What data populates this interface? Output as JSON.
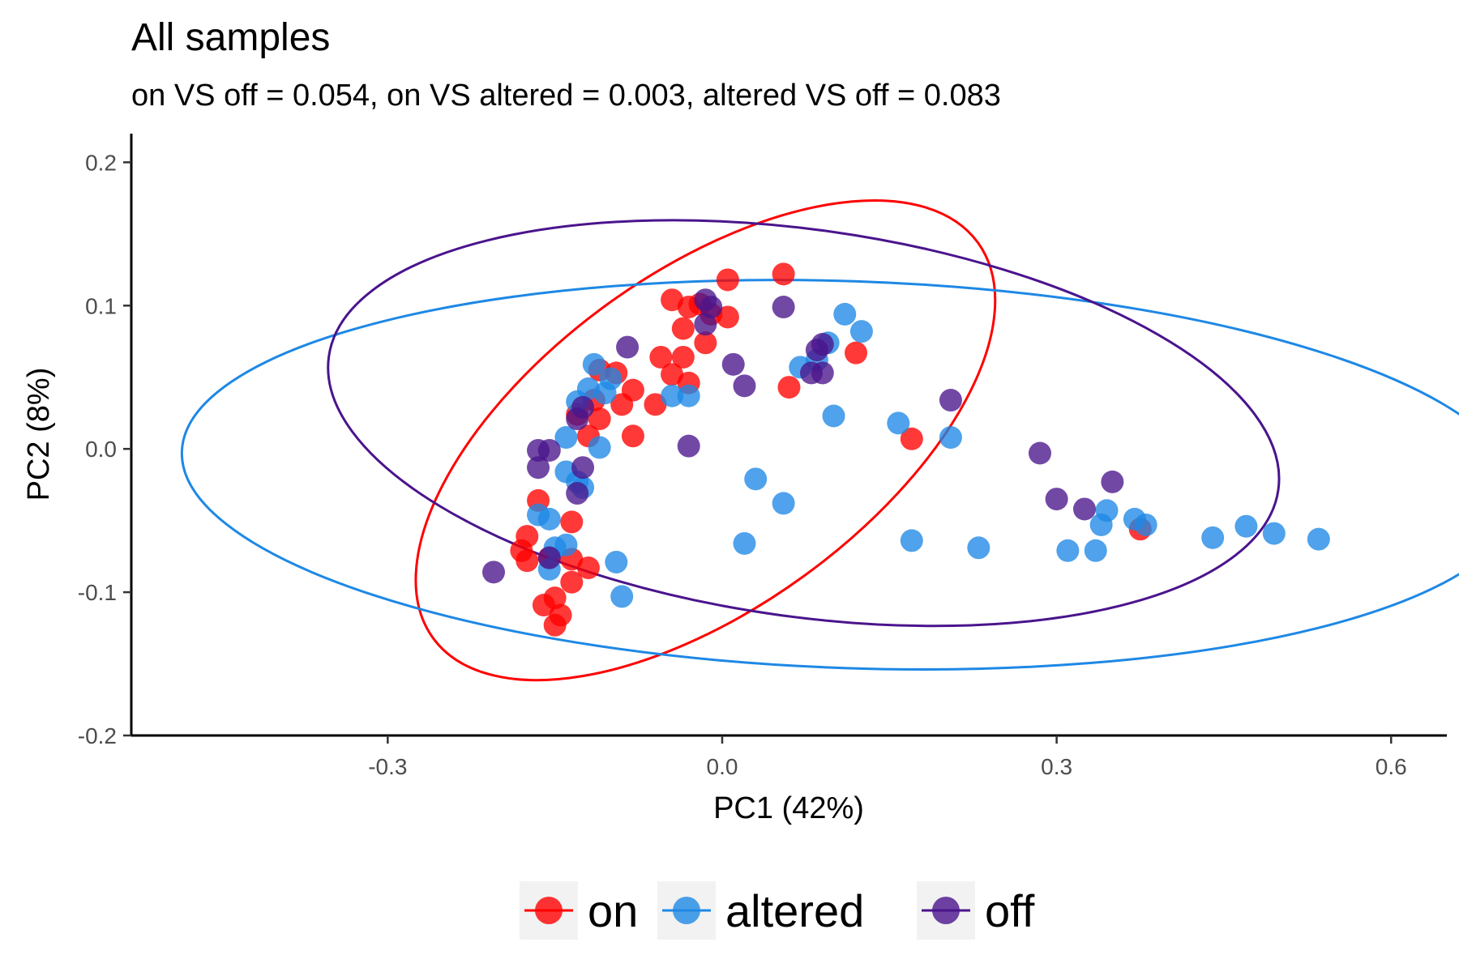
{
  "chart_data": {
    "type": "scatter",
    "title": "All samples",
    "subtitle": "on VS off = 0.054, on VS altered = 0.003, altered VS off = 0.083",
    "xlabel": "PC1 (42%)",
    "ylabel": "PC2 (8%)",
    "xlim": [
      -0.53,
      0.65
    ],
    "ylim": [
      -0.2,
      0.22
    ],
    "x_ticks": [
      -0.3,
      0.0,
      0.3,
      0.6
    ],
    "x_tick_labels": [
      "-0.3",
      "0.0",
      "0.3",
      "0.6"
    ],
    "y_ticks": [
      -0.2,
      -0.1,
      0.0,
      0.1,
      0.2
    ],
    "y_tick_labels": [
      "-0.2",
      "-0.1",
      "0.0",
      "0.1",
      "0.2"
    ],
    "grid": false,
    "legend_position": "bottom",
    "series": [
      {
        "name": "on",
        "color": "#ff0000",
        "ellipse": {
          "cx": -0.015,
          "cy": 0.006,
          "rx": 0.302,
          "ry": 0.117,
          "angle": 36
        },
        "points": [
          [
            0.005,
            0.118
          ],
          [
            0.055,
            0.122
          ],
          [
            -0.045,
            0.104
          ],
          [
            -0.03,
            0.099
          ],
          [
            -0.02,
            0.101
          ],
          [
            -0.035,
            0.084
          ],
          [
            -0.01,
            0.094
          ],
          [
            0.005,
            0.092
          ],
          [
            -0.015,
            0.074
          ],
          [
            -0.055,
            0.064
          ],
          [
            -0.035,
            0.064
          ],
          [
            -0.045,
            0.052
          ],
          [
            -0.03,
            0.046
          ],
          [
            0.12,
            0.067
          ],
          [
            0.06,
            0.043
          ],
          [
            0.17,
            0.007
          ],
          [
            -0.11,
            0.055
          ],
          [
            -0.095,
            0.053
          ],
          [
            -0.08,
            0.041
          ],
          [
            -0.09,
            0.031
          ],
          [
            -0.06,
            0.031
          ],
          [
            -0.115,
            0.034
          ],
          [
            -0.13,
            0.024
          ],
          [
            -0.11,
            0.021
          ],
          [
            -0.12,
            0.009
          ],
          [
            -0.08,
            0.009
          ],
          [
            -0.165,
            -0.036
          ],
          [
            -0.135,
            -0.051
          ],
          [
            -0.175,
            -0.061
          ],
          [
            -0.18,
            -0.071
          ],
          [
            -0.175,
            -0.078
          ],
          [
            -0.155,
            -0.076
          ],
          [
            -0.135,
            -0.077
          ],
          [
            -0.12,
            -0.083
          ],
          [
            -0.135,
            -0.093
          ],
          [
            -0.16,
            -0.109
          ],
          [
            -0.15,
            -0.104
          ],
          [
            -0.145,
            -0.116
          ],
          [
            -0.15,
            -0.123
          ],
          [
            0.375,
            -0.056
          ]
        ]
      },
      {
        "name": "altered",
        "color": "#1e88e5",
        "ellipse": {
          "cx": 0.115,
          "cy": -0.018,
          "rx": 0.6,
          "ry": 0.135,
          "angle": -2
        },
        "points": [
          [
            0.11,
            0.094
          ],
          [
            0.125,
            0.082
          ],
          [
            0.095,
            0.074
          ],
          [
            0.085,
            0.062
          ],
          [
            0.07,
            0.057
          ],
          [
            -0.115,
            0.059
          ],
          [
            -0.1,
            0.049
          ],
          [
            -0.12,
            0.042
          ],
          [
            -0.105,
            0.039
          ],
          [
            -0.045,
            0.037
          ],
          [
            -0.03,
            0.037
          ],
          [
            -0.13,
            0.033
          ],
          [
            0.1,
            0.023
          ],
          [
            0.158,
            0.018
          ],
          [
            0.205,
            0.008
          ],
          [
            -0.14,
            0.008
          ],
          [
            -0.11,
            0.001
          ],
          [
            -0.14,
            -0.016
          ],
          [
            -0.13,
            -0.023
          ],
          [
            -0.125,
            -0.027
          ],
          [
            0.03,
            -0.021
          ],
          [
            0.055,
            -0.038
          ],
          [
            -0.165,
            -0.046
          ],
          [
            -0.155,
            -0.049
          ],
          [
            -0.15,
            -0.069
          ],
          [
            -0.14,
            -0.067
          ],
          [
            -0.155,
            -0.084
          ],
          [
            -0.095,
            -0.079
          ],
          [
            -0.09,
            -0.103
          ],
          [
            0.02,
            -0.066
          ],
          [
            0.17,
            -0.064
          ],
          [
            0.23,
            -0.069
          ],
          [
            0.31,
            -0.071
          ],
          [
            0.335,
            -0.071
          ],
          [
            0.34,
            -0.053
          ],
          [
            0.345,
            -0.043
          ],
          [
            0.37,
            -0.049
          ],
          [
            0.38,
            -0.053
          ],
          [
            0.44,
            -0.062
          ],
          [
            0.47,
            -0.054
          ],
          [
            0.495,
            -0.059
          ],
          [
            0.535,
            -0.063
          ]
        ]
      },
      {
        "name": "off",
        "color": "#4a148c",
        "ellipse": {
          "cx": 0.073,
          "cy": 0.018,
          "rx": 0.43,
          "ry": 0.135,
          "angle": -8
        },
        "points": [
          [
            -0.015,
            0.104
          ],
          [
            -0.01,
            0.099
          ],
          [
            -0.015,
            0.087
          ],
          [
            0.055,
            0.099
          ],
          [
            -0.085,
            0.071
          ],
          [
            0.01,
            0.059
          ],
          [
            0.02,
            0.044
          ],
          [
            0.08,
            0.053
          ],
          [
            0.085,
            0.069
          ],
          [
            0.09,
            0.073
          ],
          [
            0.09,
            0.053
          ],
          [
            0.205,
            0.034
          ],
          [
            -0.125,
            0.029
          ],
          [
            -0.13,
            0.021
          ],
          [
            -0.03,
            0.002
          ],
          [
            -0.155,
            -0.001
          ],
          [
            -0.165,
            -0.001
          ],
          [
            -0.165,
            -0.013
          ],
          [
            -0.125,
            -0.013
          ],
          [
            -0.13,
            -0.031
          ],
          [
            0.285,
            -0.003
          ],
          [
            0.3,
            -0.035
          ],
          [
            0.325,
            -0.042
          ],
          [
            0.35,
            -0.023
          ],
          [
            -0.205,
            -0.086
          ],
          [
            -0.155,
            -0.076
          ]
        ]
      }
    ]
  }
}
